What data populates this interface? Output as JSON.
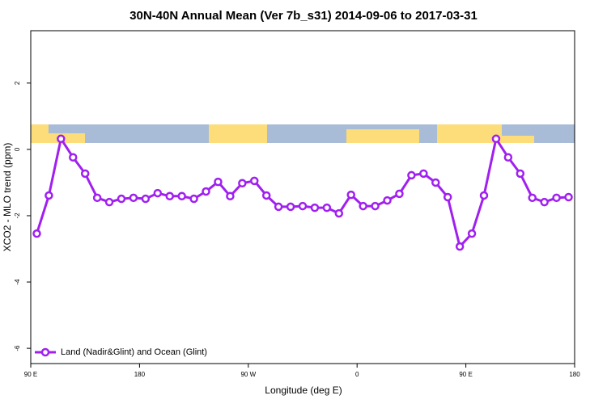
{
  "chart_data": {
    "type": "line",
    "title": "30N-40N Annual Mean (Ver 7b_s31)   2014-09-06 to 2017-03-31",
    "x_label": "Longitude (deg E)",
    "y_label": "XCO2 - MLO trend (ppm)",
    "x": [
      95,
      105,
      115,
      125,
      135,
      145,
      155,
      165,
      175,
      185,
      195,
      205,
      215,
      225,
      235,
      245,
      255,
      265,
      275,
      285,
      295,
      305,
      315,
      325,
      335,
      345,
      355,
      365,
      375,
      385,
      395,
      405,
      415,
      425,
      435,
      445,
      455,
      465,
      475,
      485,
      495,
      505,
      515,
      525,
      535
    ],
    "series": [
      {
        "name": "Land (Nadir&Glint) and Ocean (Glint)",
        "color": "#a020f0",
        "values": [
          -2.54,
          -1.39,
          0.32,
          -0.24,
          -0.73,
          -1.46,
          -1.59,
          -1.49,
          -1.46,
          -1.49,
          -1.32,
          -1.41,
          -1.41,
          -1.49,
          -1.27,
          -0.98,
          -1.41,
          -1.02,
          -0.95,
          -1.39,
          -1.73,
          -1.73,
          -1.71,
          -1.76,
          -1.76,
          -1.93,
          -1.37,
          -1.71,
          -1.71,
          -1.54,
          -1.34,
          -0.78,
          -0.73,
          -1.0,
          -1.44,
          -2.93,
          -2.54,
          -1.39,
          0.32,
          -0.24,
          -0.73,
          -1.46,
          -1.59,
          -1.46,
          -1.44
        ]
      }
    ],
    "xlim": [
      90,
      540
    ],
    "xticks": [
      {
        "value": 90,
        "label": "90 E"
      },
      180,
      {
        "value": 270,
        "label": "90 W"
      },
      {
        "value": 360,
        "label": "0"
      },
      {
        "value": 450,
        "label": "90 E"
      },
      180
    ],
    "ylim": [
      -6.46,
      3.58
    ],
    "yticks": [
      -6,
      -4,
      -2,
      0,
      2
    ],
    "legend": "bottom-left"
  }
}
